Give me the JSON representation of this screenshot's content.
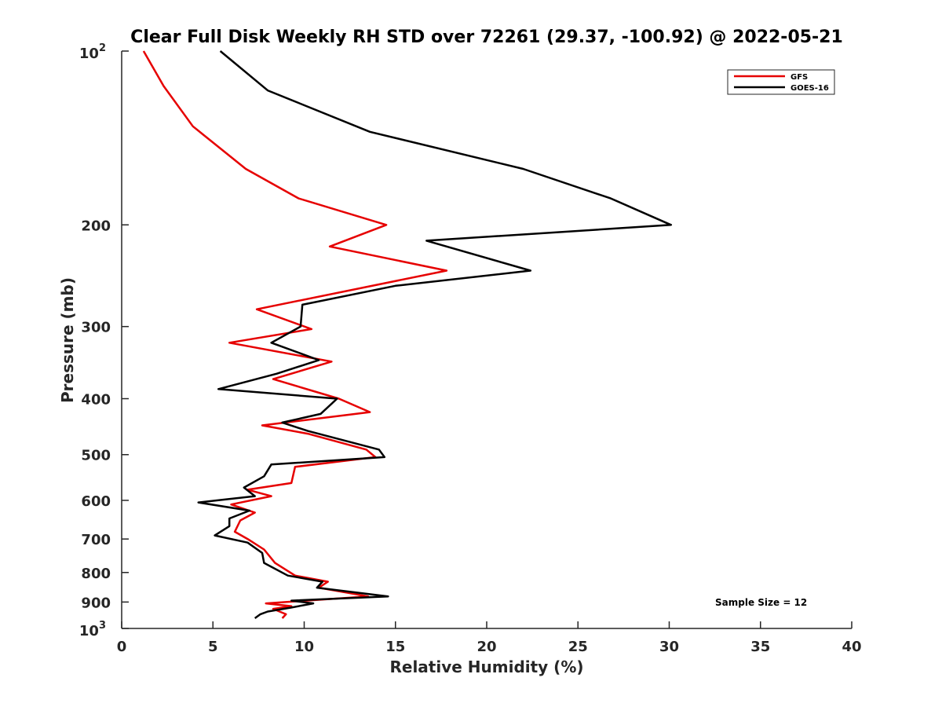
{
  "chart_data": {
    "type": "line",
    "title": "Clear Full Disk Weekly RH STD over 72261 (29.37, -100.92) @ 2022-05-21",
    "xlabel": "Relative Humidity (%)",
    "ylabel": "Pressure (mb)",
    "xlim": [
      0,
      40
    ],
    "ylim": [
      100,
      1000
    ],
    "y_scale": "log",
    "y_reversed": true,
    "grid": false,
    "legend_position": "top-right",
    "x_ticks": [
      0,
      5,
      10,
      15,
      20,
      25,
      30,
      35,
      40
    ],
    "x_tick_labels": [
      "0",
      "5",
      "10",
      "15",
      "20",
      "25",
      "30",
      "35",
      "40"
    ],
    "y_ticks": [
      200,
      300,
      400,
      500,
      600,
      700,
      800,
      900
    ],
    "y_tick_labels": [
      "200",
      "300",
      "400",
      "500",
      "600",
      "700",
      "800",
      "900"
    ],
    "y_end_labels": [
      {
        "value": 100,
        "base": "10",
        "exp": "2"
      },
      {
        "value": 1000,
        "base": "10",
        "exp": "3"
      }
    ],
    "annotation": "Sample Size = 12",
    "series": [
      {
        "name": "GFS",
        "color": "#e60000",
        "points": [
          [
            1.2,
            100
          ],
          [
            2.3,
            115
          ],
          [
            3.9,
            135
          ],
          [
            6.8,
            160
          ],
          [
            9.7,
            180
          ],
          [
            14.5,
            200
          ],
          [
            11.4,
            218
          ],
          [
            17.8,
            240
          ],
          [
            7.4,
            280
          ],
          [
            10.4,
            303
          ],
          [
            5.9,
            320
          ],
          [
            11.5,
            345
          ],
          [
            8.3,
            370
          ],
          [
            11.9,
            400
          ],
          [
            13.6,
            422
          ],
          [
            7.7,
            445
          ],
          [
            10.2,
            460
          ],
          [
            13.4,
            490
          ],
          [
            13.9,
            505
          ],
          [
            9.5,
            525
          ],
          [
            9.3,
            560
          ],
          [
            6.9,
            575
          ],
          [
            8.2,
            590
          ],
          [
            6.0,
            610
          ],
          [
            7.3,
            630
          ],
          [
            6.5,
            650
          ],
          [
            6.2,
            680
          ],
          [
            6.9,
            700
          ],
          [
            7.8,
            730
          ],
          [
            8.4,
            770
          ],
          [
            9.5,
            810
          ],
          [
            11.3,
            830
          ],
          [
            10.8,
            850
          ],
          [
            13.5,
            880
          ],
          [
            7.9,
            905
          ],
          [
            9.3,
            915
          ],
          [
            8.3,
            925
          ],
          [
            9.0,
            945
          ],
          [
            8.8,
            960
          ]
        ]
      },
      {
        "name": "GOES-16",
        "color": "#000000",
        "points": [
          [
            5.4,
            100
          ],
          [
            8.0,
            117
          ],
          [
            13.6,
            138
          ],
          [
            22.0,
            160
          ],
          [
            26.8,
            180
          ],
          [
            30.1,
            200
          ],
          [
            16.7,
            213
          ],
          [
            22.4,
            240
          ],
          [
            15.0,
            255
          ],
          [
            9.9,
            275
          ],
          [
            9.8,
            300
          ],
          [
            8.2,
            320
          ],
          [
            10.8,
            343
          ],
          [
            8.5,
            362
          ],
          [
            5.3,
            385
          ],
          [
            11.8,
            400
          ],
          [
            10.9,
            425
          ],
          [
            8.8,
            440
          ],
          [
            10.2,
            455
          ],
          [
            14.1,
            490
          ],
          [
            14.4,
            505
          ],
          [
            8.2,
            520
          ],
          [
            7.8,
            545
          ],
          [
            6.7,
            570
          ],
          [
            7.3,
            590
          ],
          [
            4.2,
            605
          ],
          [
            7.0,
            625
          ],
          [
            5.9,
            645
          ],
          [
            5.9,
            665
          ],
          [
            5.1,
            690
          ],
          [
            6.9,
            710
          ],
          [
            7.7,
            740
          ],
          [
            7.8,
            770
          ],
          [
            9.1,
            810
          ],
          [
            11.0,
            830
          ],
          [
            10.7,
            850
          ],
          [
            14.6,
            880
          ],
          [
            9.3,
            895
          ],
          [
            10.5,
            905
          ],
          [
            9.3,
            920
          ],
          [
            8.0,
            935
          ],
          [
            7.6,
            945
          ],
          [
            7.3,
            960
          ]
        ]
      }
    ]
  }
}
